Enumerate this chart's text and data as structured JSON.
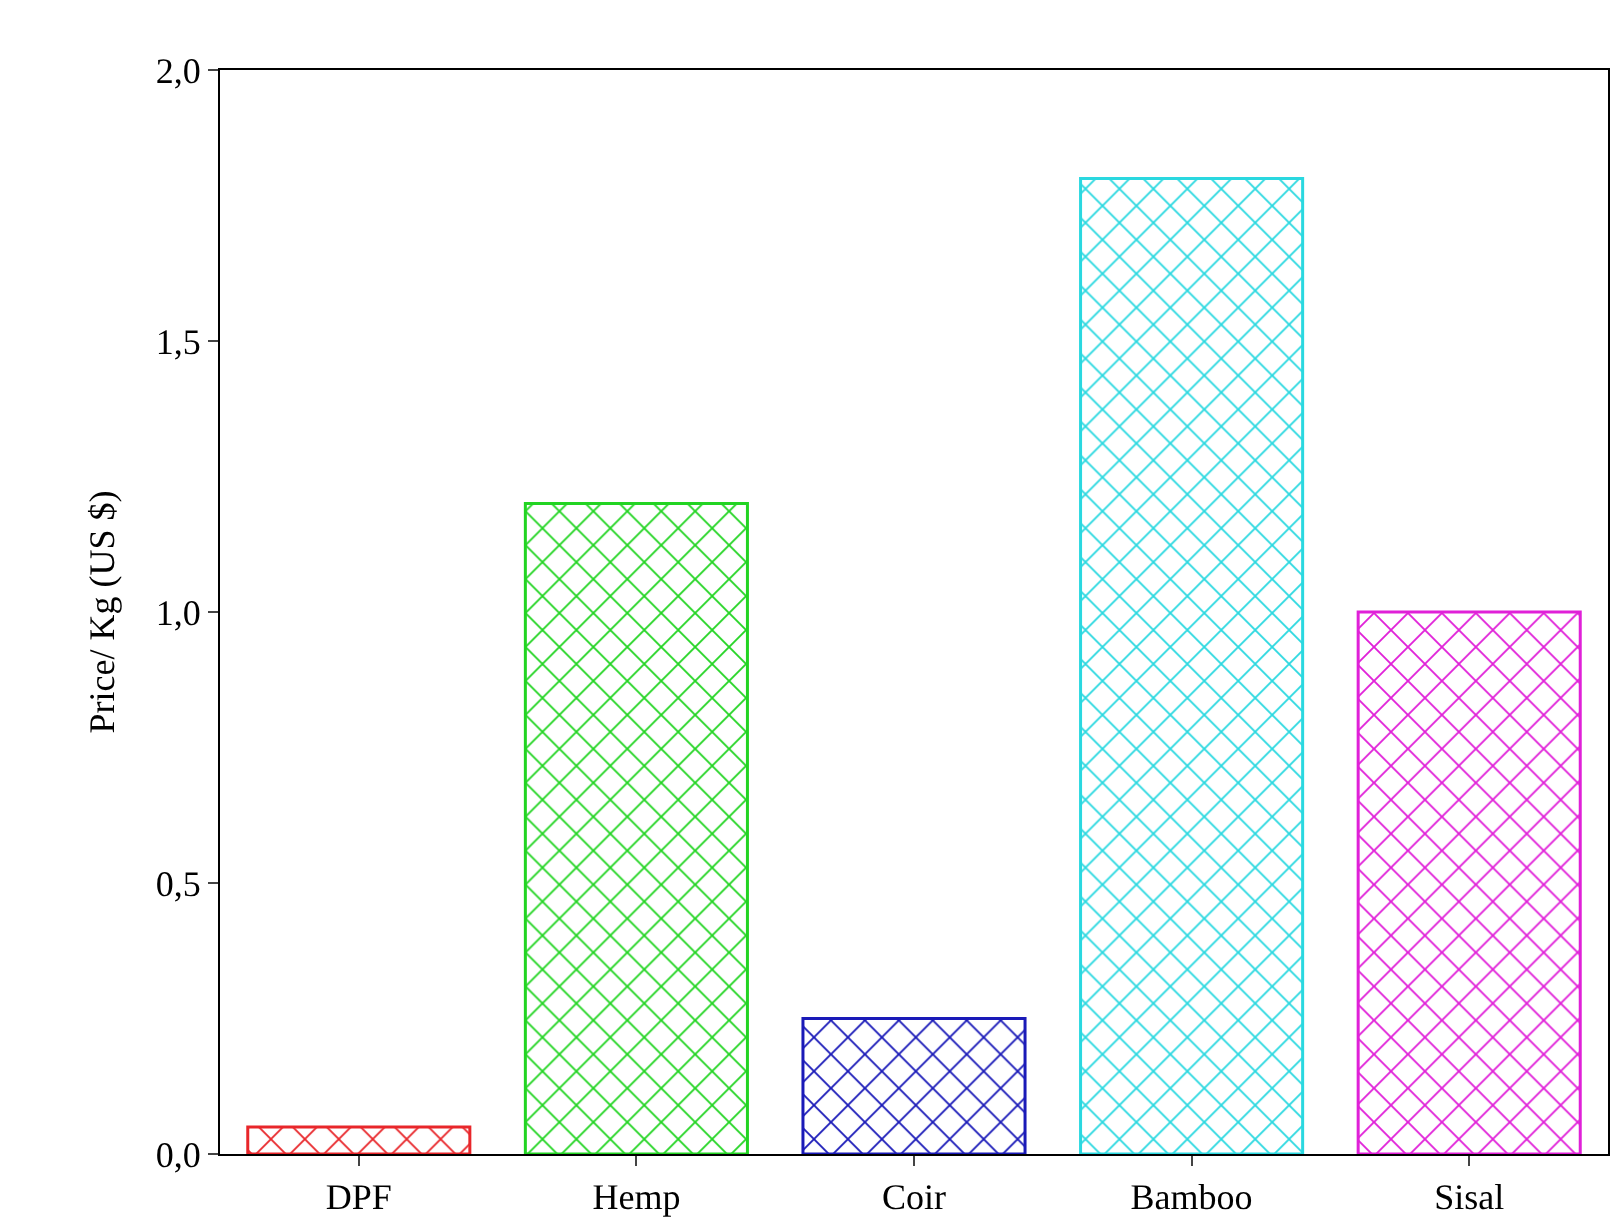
{
  "chart_data": {
    "type": "bar",
    "ylabel": "Price/ Kg (US $)",
    "categories": [
      "DPF",
      "Hemp",
      "Coir",
      "Bamboo",
      "Sisal"
    ],
    "values": [
      0.05,
      1.2,
      0.25,
      1.8,
      1.0
    ],
    "colors": [
      "#e8262a",
      "#22d422",
      "#1a1ab8",
      "#2ad8e0",
      "#e020d8"
    ],
    "ylim": [
      0,
      2
    ],
    "yticks": [
      {
        "value": 0,
        "label": "0,0"
      },
      {
        "value": 0.5,
        "label": "0,5"
      },
      {
        "value": 1,
        "label": "1,0"
      },
      {
        "value": 1.5,
        "label": "1,5"
      },
      {
        "value": 2,
        "label": "2,0"
      }
    ],
    "legend": false
  }
}
